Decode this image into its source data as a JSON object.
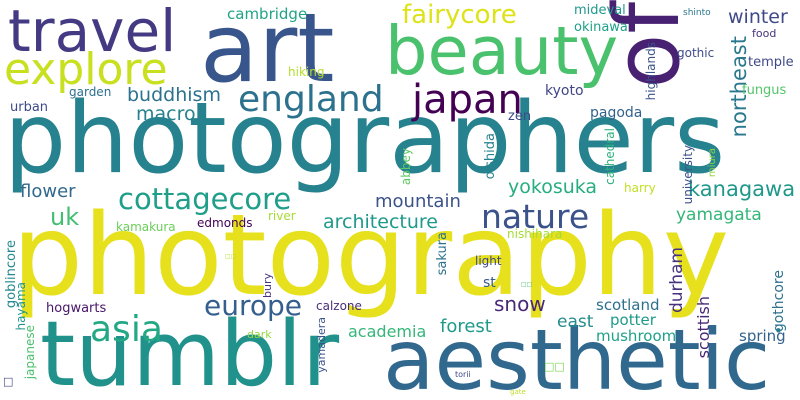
{
  "words": [
    {
      "id": "photography",
      "text": "photography",
      "color": "#e6e11c"
    },
    {
      "id": "photographers",
      "text": "photographers",
      "color": "#26828e"
    },
    {
      "id": "tumblr",
      "text": "tumblr",
      "color": "#21918c"
    },
    {
      "id": "aesthetic",
      "text": "aesthetic",
      "color": "#31688e"
    },
    {
      "id": "art",
      "text": "art",
      "color": "#39568c"
    },
    {
      "id": "beauty",
      "text": "beauty",
      "color": "#4ac16d"
    },
    {
      "id": "of",
      "text": "of",
      "color": "#482173"
    },
    {
      "id": "travel",
      "text": "travel",
      "color": "#443a83"
    },
    {
      "id": "explore",
      "text": "explore",
      "color": "#c8e020"
    },
    {
      "id": "japan",
      "text": "japan",
      "color": "#440154"
    },
    {
      "id": "england",
      "text": "england",
      "color": "#2c728e"
    },
    {
      "id": "nature",
      "text": "nature",
      "color": "#3b528b"
    },
    {
      "id": "asia",
      "text": "asia",
      "color": "#22a884"
    },
    {
      "id": "europe",
      "text": "europe",
      "color": "#355f8d"
    },
    {
      "id": "cottagecore",
      "text": "cottagecore",
      "color": "#1f9e89"
    },
    {
      "id": "fairycore",
      "text": "fairycore",
      "color": "#dde318"
    },
    {
      "id": "kanagawa",
      "text": "kanagawa",
      "color": "#1f988b"
    },
    {
      "id": "winter",
      "text": "winter",
      "color": "#3e4989"
    },
    {
      "id": "northeast",
      "text": "northeast",
      "color": "#2a788e"
    },
    {
      "id": "buddhism",
      "text": "buddhism",
      "color": "#2c728e"
    },
    {
      "id": "macro",
      "text": "macro",
      "color": "#26828e"
    },
    {
      "id": "uk",
      "text": "uk",
      "color": "#42be71"
    },
    {
      "id": "flower",
      "text": "flower",
      "color": "#31688e"
    },
    {
      "id": "mountain",
      "text": "mountain",
      "color": "#3b528b"
    },
    {
      "id": "architecture",
      "text": "architecture",
      "color": "#1f9a8a"
    },
    {
      "id": "yokosuka",
      "text": "yokosuka",
      "color": "#27ad81"
    },
    {
      "id": "yamagata",
      "text": "yamagata",
      "color": "#34b679"
    },
    {
      "id": "snow",
      "text": "snow",
      "color": "#482878"
    },
    {
      "id": "forest",
      "text": "forest",
      "color": "#1f9a8a"
    },
    {
      "id": "east",
      "text": "east",
      "color": "#238a8d"
    },
    {
      "id": "durham",
      "text": "durham",
      "color": "#46327e"
    },
    {
      "id": "scottish",
      "text": "scottish",
      "color": "#482878"
    },
    {
      "id": "academia",
      "text": "academia",
      "color": "#35b779"
    },
    {
      "id": "mushroom",
      "text": "mushroom",
      "color": "#1fa188"
    },
    {
      "id": "scotland",
      "text": "scotland",
      "color": "#2d708e"
    },
    {
      "id": "potter",
      "text": "potter",
      "color": "#1e9b8a"
    },
    {
      "id": "spring",
      "text": "spring",
      "color": "#33638d"
    },
    {
      "id": "gothcore",
      "text": "gothcore",
      "color": "#2d718e"
    },
    {
      "id": "dot",
      "text": "•",
      "color": "#277f8e"
    },
    {
      "id": "cambridge",
      "text": "cambridge",
      "color": "#20a386"
    },
    {
      "id": "mideval",
      "text": "mideval",
      "color": "#1f988b"
    },
    {
      "id": "okinawa",
      "text": "okinawa",
      "color": "#1fa088"
    },
    {
      "id": "shinto",
      "text": "shinto",
      "color": "#2a788e"
    },
    {
      "id": "food",
      "text": "food",
      "color": "#46337e"
    },
    {
      "id": "temple",
      "text": "temple",
      "color": "#3e4989"
    },
    {
      "id": "gothic",
      "text": "gothic",
      "color": "#3e4c8a"
    },
    {
      "id": "highlands",
      "text": "highlands",
      "color": "#3b528b"
    },
    {
      "id": "fungus",
      "text": "fungus",
      "color": "#52c569"
    },
    {
      "id": "kyoto",
      "text": "kyoto",
      "color": "#404688"
    },
    {
      "id": "pagoda",
      "text": "pagoda",
      "color": "#33638d"
    },
    {
      "id": "zen",
      "text": "zen",
      "color": "#3e4989"
    },
    {
      "id": "garden",
      "text": "garden",
      "color": "#2d708e"
    },
    {
      "id": "urban",
      "text": "urban",
      "color": "#3e4989"
    },
    {
      "id": "hiking",
      "text": "hiking",
      "color": "#b5de2b"
    },
    {
      "id": "oishida",
      "text": "oishida",
      "color": "#26828e"
    },
    {
      "id": "abbey",
      "text": "abbey",
      "color": "#5ec962"
    },
    {
      "id": "cathedral",
      "text": "cathedral",
      "color": "#2db27d"
    },
    {
      "id": "university",
      "text": "university",
      "color": "#3b528b"
    },
    {
      "id": "miura",
      "text": "miura",
      "color": "#8fd744"
    },
    {
      "id": "harry",
      "text": "harry",
      "color": "#c2df23"
    },
    {
      "id": "nishihara",
      "text": "nishihara",
      "color": "#a5db36"
    },
    {
      "id": "river",
      "text": "river",
      "color": "#a8db34"
    },
    {
      "id": "kamakura",
      "text": "kamakura",
      "color": "#6ccd5a"
    },
    {
      "id": "edmonds",
      "text": "edmonds",
      "color": "#440154"
    },
    {
      "id": "sakura",
      "text": "sakura",
      "color": "#2c728e"
    },
    {
      "id": "light",
      "text": "light",
      "color": "#3e4989"
    },
    {
      "id": "st",
      "text": "st",
      "color": "#375b8d"
    },
    {
      "id": "bury",
      "text": "bury",
      "color": "#46327e"
    },
    {
      "id": "calzone",
      "text": "calzone",
      "color": "#472d7b"
    },
    {
      "id": "hogwarts",
      "text": "hogwarts",
      "color": "#481668"
    },
    {
      "id": "goblincore",
      "text": "goblincore",
      "color": "#23898e"
    },
    {
      "id": "hayama",
      "text": "hayama",
      "color": "#1f978b"
    },
    {
      "id": "japanese",
      "text": "japanese",
      "color": "#4ac16d"
    },
    {
      "id": "dark",
      "text": "dark",
      "color": "#95d840"
    },
    {
      "id": "yamadera",
      "text": "yamadera",
      "color": "#3b528b"
    },
    {
      "id": "torii",
      "text": "torii",
      "color": "#3e4989"
    },
    {
      "id": "gate",
      "text": "gate",
      "color": "#bddf26"
    },
    {
      "id": "glyph1",
      "text": "□□",
      "color": "#b5de2b"
    },
    {
      "id": "glyph2",
      "text": "□□",
      "color": "#7ad151"
    },
    {
      "id": "glyph3",
      "text": "□□",
      "color": "#4ac16d"
    },
    {
      "id": "glyph4",
      "text": "□",
      "color": "#414487"
    }
  ]
}
